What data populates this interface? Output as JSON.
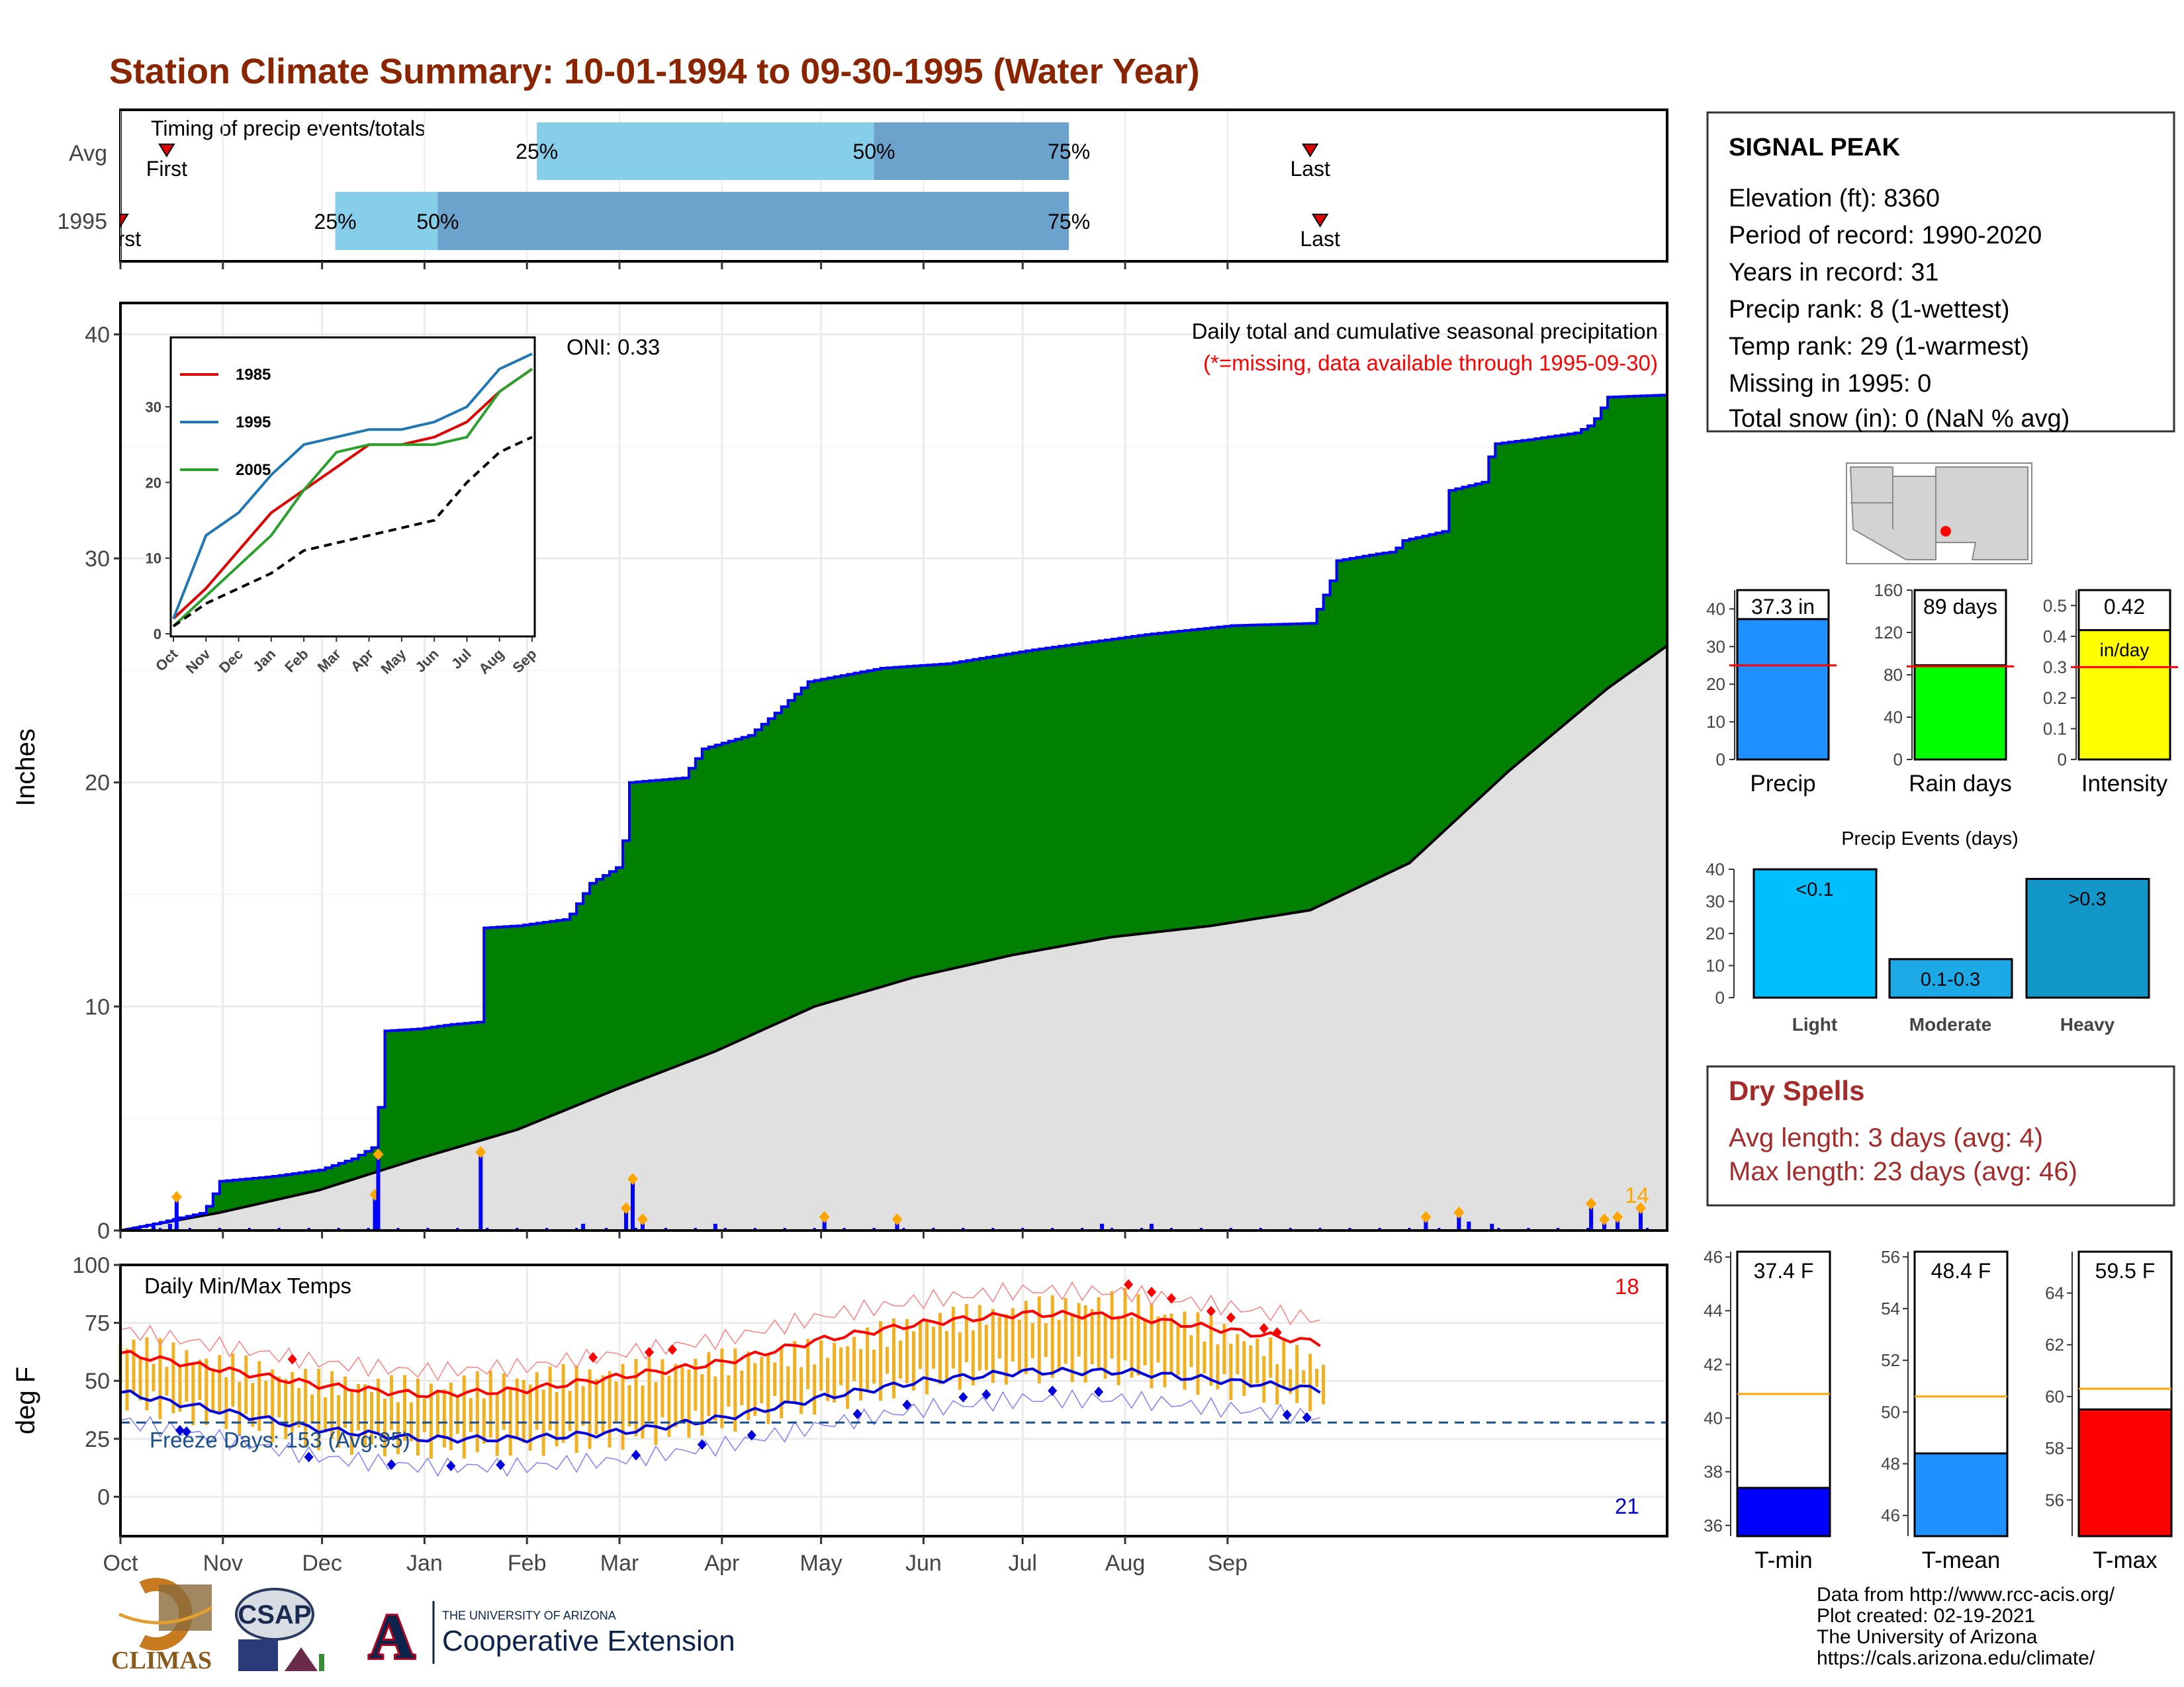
{
  "title": "Station Climate Summary: 10-01-1994 to 09-30-1995 (Water Year)",
  "months": [
    "Oct",
    "Nov",
    "Dec",
    "Jan",
    "Feb",
    "Mar",
    "Apr",
    "May",
    "Jun",
    "Jul",
    "Aug",
    "Sep"
  ],
  "timing": {
    "label": "Timing of precip events/totals",
    "rows": [
      {
        "name": "Avg",
        "first_label": "First",
        "last_label": "Last",
        "first_day": 14,
        "last_day": 360,
        "p25": 126,
        "p50": 228,
        "p75": 287,
        "p25_label": "25%",
        "p50_label": "50%",
        "p75_label": "75%"
      },
      {
        "name": "1995",
        "first_label": "First",
        "last_label": "Last",
        "first_day": 0,
        "last_day": 363,
        "p25": 65,
        "p50": 96,
        "p75": 287,
        "p25_label": "25%",
        "p50_label": "50%",
        "p75_label": "75%"
      }
    ]
  },
  "station": {
    "name": "SIGNAL PEAK",
    "lines": [
      "Elevation (ft): 8360",
      "Period of record: 1990-2020",
      "Years in record: 31",
      "Precip rank: 8 (1-wettest)",
      "Temp rank: 29 (1-warmest)",
      "Missing in 1995: 0",
      "Total snow (in): 0 (NaN % avg)"
    ]
  },
  "precip_panel": {
    "ylabel": "Inches",
    "note1": "Daily total and cumulative seasonal precipitation",
    "note2": "(*=missing, data available through 1995-09-30)",
    "oni": "ONI: 0.33",
    "count_label": "14",
    "colors": {
      "observed": "#008000",
      "average": "#e0e0e0",
      "bars": "#0000ff",
      "points": "#ffa500"
    }
  },
  "dry_spells": {
    "title": "Dry Spells",
    "avg": "Avg length: 3 days (avg: 4)",
    "max": "Max length: 23 days (avg: 46)"
  },
  "temp_panel": {
    "ylabel": "deg F",
    "label": "Daily Min/Max Temps",
    "freeze": "Freeze Days: 153 (Avg:95)",
    "max_count": "18",
    "min_count": "21"
  },
  "footer": [
    "Data from http://www.rcc-acis.org/",
    "Plot created: 02-19-2021",
    "The University of Arizona",
    "https://cals.arizona.edu/climate/"
  ],
  "logos": {
    "climas": "CLIMAS",
    "csap": "CSAP",
    "ua_small": "THE UNIVERSITY OF ARIZONA",
    "ua_big": "Cooperative Extension",
    "ua_letter": "A"
  },
  "chart_data": [
    {
      "type": "area",
      "title": "Daily total and cumulative seasonal precipitation",
      "ylabel": "Inches",
      "ylim": [
        0,
        40
      ],
      "x": "day of water year (0 = Oct 1)",
      "series": [
        {
          "name": "1995",
          "points": [
            [
              0,
              0
            ],
            [
              10,
              0.3
            ],
            [
              25,
              0.8
            ],
            [
              30,
              2.2
            ],
            [
              45,
              2.4
            ],
            [
              60,
              2.7
            ],
            [
              70,
              3.2
            ],
            [
              76,
              3.7
            ],
            [
              78,
              5.5
            ],
            [
              79,
              8.9
            ],
            [
              90,
              9.0
            ],
            [
              100,
              9.2
            ],
            [
              108,
              9.3
            ],
            [
              109,
              13.5
            ],
            [
              120,
              13.6
            ],
            [
              135,
              13.9
            ],
            [
              142,
              15.5
            ],
            [
              150,
              16.2
            ],
            [
              153,
              18.0
            ],
            [
              154,
              20.0
            ],
            [
              170,
              20.2
            ],
            [
              176,
              21.5
            ],
            [
              190,
              22.1
            ],
            [
              198,
              23.1
            ],
            [
              208,
              24.5
            ],
            [
              230,
              25.1
            ],
            [
              250,
              25.3
            ],
            [
              275,
              25.9
            ],
            [
              290,
              26.2
            ],
            [
              310,
              26.6
            ],
            [
              336,
              27.0
            ],
            [
              360,
              27.1
            ],
            [
              366,
              29.0
            ],
            [
              368,
              29.9
            ],
            [
              380,
              30.2
            ],
            [
              385,
              30.3
            ],
            [
              388,
              30.8
            ],
            [
              400,
              31.2
            ],
            [
              401,
              33.0
            ],
            [
              412,
              33.4
            ],
            [
              415,
              35.1
            ],
            [
              426,
              35.3
            ],
            [
              440,
              35.6
            ],
            [
              445,
              36.0
            ],
            [
              450,
              37.2
            ],
            [
              468,
              37.3
            ]
          ]
        },
        {
          "name": "Average",
          "points": [
            [
              0,
              0
            ],
            [
              30,
              0.8
            ],
            [
              60,
              1.8
            ],
            [
              90,
              3.2
            ],
            [
              120,
              4.5
            ],
            [
              150,
              6.3
            ],
            [
              180,
              8.0
            ],
            [
              210,
              10.0
            ],
            [
              240,
              11.3
            ],
            [
              270,
              12.3
            ],
            [
              300,
              13.1
            ],
            [
              330,
              13.6
            ],
            [
              360,
              14.3
            ],
            [
              390,
              16.4
            ],
            [
              420,
              20.5
            ],
            [
              450,
              24.2
            ],
            [
              468,
              26.1
            ]
          ]
        }
      ],
      "daily_precip_inches": [
        [
          10,
          0.2
        ],
        [
          15,
          0.3
        ],
        [
          17,
          1.5
        ],
        [
          77,
          1.6
        ],
        [
          78,
          3.4
        ],
        [
          109,
          3.5
        ],
        [
          140,
          0.3
        ],
        [
          153,
          1.0
        ],
        [
          155,
          2.3
        ],
        [
          158,
          0.5
        ],
        [
          180,
          0.3
        ],
        [
          213,
          0.6
        ],
        [
          235,
          0.5
        ],
        [
          297,
          0.3
        ],
        [
          312,
          0.3
        ],
        [
          395,
          0.6
        ],
        [
          405,
          0.8
        ],
        [
          408,
          0.4
        ],
        [
          415,
          0.3
        ],
        [
          445,
          1.2
        ],
        [
          449,
          0.5
        ],
        [
          453,
          0.6
        ],
        [
          460,
          1.0
        ]
      ]
    },
    {
      "type": "line",
      "title": "",
      "ylim": [
        0,
        40
      ],
      "categories": [
        "Oct",
        "Nov",
        "Dec",
        "Jan",
        "Feb",
        "Mar",
        "Apr",
        "May",
        "Jun",
        "Jul",
        "Aug",
        "Sep"
      ],
      "series": [
        {
          "name": "1985",
          "values": [
            2,
            6,
            11,
            16,
            19,
            22,
            25,
            25,
            26,
            28,
            32,
            35
          ]
        },
        {
          "name": "1995",
          "values": [
            2,
            13,
            16,
            21,
            25,
            26,
            27,
            27,
            28,
            30,
            35,
            37
          ]
        },
        {
          "name": "2005",
          "values": [
            1,
            5,
            9,
            13,
            19,
            24,
            25,
            25,
            25,
            26,
            32,
            35
          ]
        },
        {
          "name": "",
          "values": [
            1,
            4,
            6,
            8,
            11,
            12,
            13,
            14,
            15,
            20,
            24,
            26
          ]
        }
      ]
    },
    {
      "type": "bar",
      "title": "",
      "categories": [
        "Precip",
        "Rain days",
        "Intensity"
      ],
      "values": [
        37.3,
        89,
        0.42
      ],
      "value_labels": [
        "37.3 in",
        "89 days",
        "0.42"
      ],
      "unit_label": "in/day",
      "averages": [
        25,
        88,
        0.3
      ],
      "ylims": [
        [
          0,
          45
        ],
        [
          0,
          160
        ],
        [
          0,
          0.55
        ]
      ],
      "colors": [
        "#1e90ff",
        "#00ff00",
        "#ffff00"
      ]
    },
    {
      "type": "bar",
      "title": "Precip Events (days)",
      "categories": [
        "Light",
        "Moderate",
        "Heavy"
      ],
      "values": [
        40,
        12,
        37
      ],
      "value_labels": [
        "<0.1",
        "0.1-0.3",
        ">0.3"
      ],
      "ylim": [
        0,
        40
      ],
      "colors": [
        "#00bfff",
        "#1ca9e6",
        "#1396c8"
      ]
    },
    {
      "type": "line",
      "title": "Daily Min/Max Temps",
      "ylabel": "deg F",
      "ylim": [
        -17,
        100
      ],
      "categories": [
        "Oct",
        "Nov",
        "Dec",
        "Jan",
        "Feb",
        "Mar",
        "Apr",
        "May",
        "Jun",
        "Jul",
        "Aug",
        "Sep"
      ],
      "series": [
        {
          "name": "Avg max",
          "values": [
            62,
            55,
            48,
            44,
            46,
            52,
            58,
            68,
            75,
            79,
            78,
            72
          ]
        },
        {
          "name": "Avg min",
          "values": [
            45,
            37,
            29,
            25,
            25,
            28,
            34,
            43,
            50,
            54,
            54,
            50
          ]
        },
        {
          "name": "Max",
          "values": [
            66,
            57,
            49,
            46,
            50,
            53,
            58,
            63,
            75,
            80,
            84,
            70
          ]
        },
        {
          "name": "Min",
          "values": [
            43,
            34,
            25,
            22,
            23,
            26,
            33,
            42,
            50,
            55,
            54,
            48
          ]
        }
      ],
      "freeze_line": 32
    },
    {
      "type": "bar",
      "title": "",
      "categories": [
        "T-min",
        "T-mean",
        "T-max"
      ],
      "values": [
        37.4,
        48.4,
        59.5
      ],
      "value_labels": [
        "37.4 F",
        "48.4 F",
        "59.5 F"
      ],
      "averages": [
        40.9,
        50.6,
        60.3
      ],
      "ylims": [
        [
          35.6,
          46.2
        ],
        [
          45.2,
          56.2
        ],
        [
          54.6,
          65.6
        ]
      ],
      "colors": [
        "#0000ff",
        "#1e90ff",
        "#ff0000"
      ]
    }
  ]
}
